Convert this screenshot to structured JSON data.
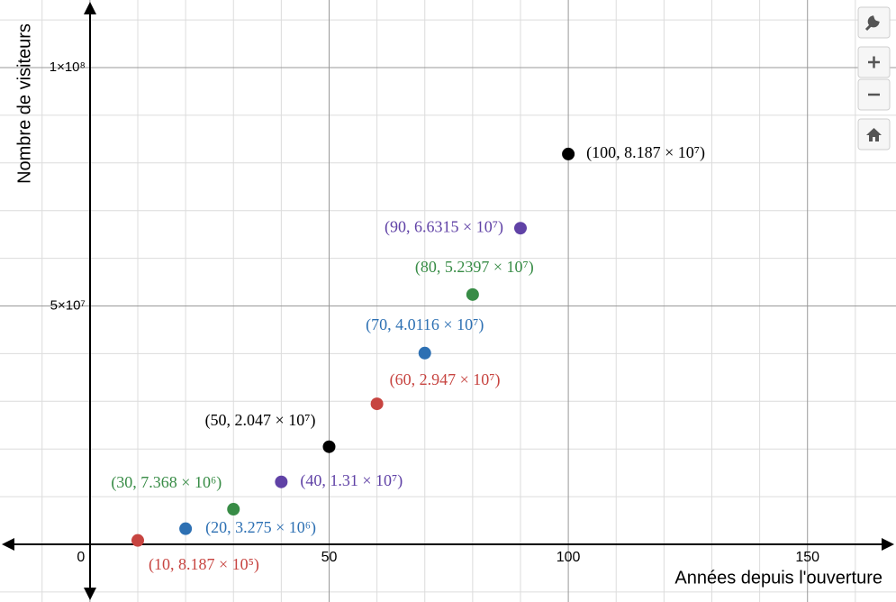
{
  "chart_data": {
    "type": "scatter",
    "x_label": "Années depuis l'ouverture",
    "y_label": "Nombre de visiteurs",
    "x": [
      10,
      20,
      30,
      40,
      50,
      60,
      70,
      80,
      90,
      100
    ],
    "values": [
      818700,
      3275000,
      7368000,
      13100000,
      20470000,
      29470000,
      40116000,
      52397000,
      66315000,
      81870000
    ],
    "value_labels": [
      "(10, 8.187 × 10⁵)",
      "(20, 3.275 × 10⁶)",
      "(30, 7.368 × 10⁶)",
      "(40, 1.31 × 10⁷)",
      "(50, 2.047 × 10⁷)",
      "(60, 2.947 × 10⁷)",
      "(70, 4.0116 × 10⁷)",
      "(80, 5.2397 × 10⁷)",
      "(90, 6.6315 × 10⁷)",
      "(100, 8.187 × 10⁷)"
    ],
    "colors": [
      "#c74440",
      "#2d70b3",
      "#388c46",
      "#6042a6",
      "#000000",
      "#c74440",
      "#2d70b3",
      "#388c46",
      "#6042a6",
      "#000000"
    ],
    "xlim": [
      -18.8,
      168.5
    ],
    "ylim": [
      -12100000,
      114180000
    ],
    "xticks": [
      0,
      50,
      100,
      150
    ],
    "yticks": [
      {
        "value": 50000000,
        "label": "5×10⁷"
      },
      {
        "value": 100000000,
        "label": "1×10⁸"
      }
    ],
    "xgrid": [
      -10,
      10,
      20,
      30,
      40,
      60,
      70,
      80,
      90,
      110,
      120,
      130,
      140,
      160
    ],
    "ygrid": [
      -10000000,
      10000000,
      20000000,
      30000000,
      40000000,
      60000000,
      70000000,
      80000000,
      90000000,
      110000000
    ],
    "grid": true
  }
}
